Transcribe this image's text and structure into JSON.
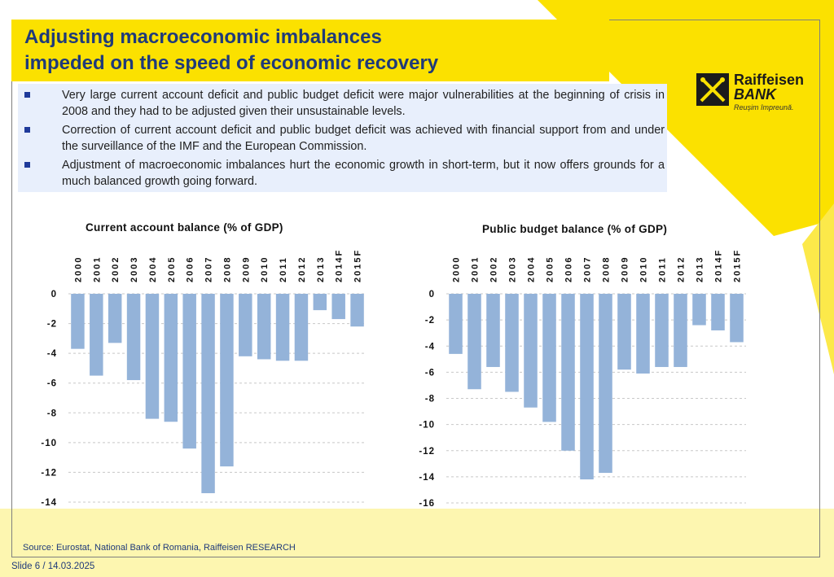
{
  "title": {
    "line1": "Adjusting macroeconomic imbalances",
    "line2": "impeded on the speed of economic recovery"
  },
  "bullets": [
    "Very large current account deficit and public budget deficit were major vulnerabilities at the beginning of crisis in 2008 and they had to be adjusted given their unsustainable levels.",
    "Correction of current account deficit and public budget deficit was achieved with financial support from and under the surveillance of the IMF and the European Commission.",
    "Adjustment of macroeconomic imbalances hurt the economic growth in short-term, but it now offers grounds for a much balanced growth going forward."
  ],
  "logo": {
    "name_line1": "Raiffeisen",
    "name_line2": "BANK",
    "slogan": "Reușim împreună."
  },
  "colors": {
    "title_bg": "#fbe100",
    "title_text": "#1f3a7a",
    "bullet_bg": "#e8effc",
    "bar": "#94b3d9"
  },
  "chart_data": [
    {
      "type": "bar",
      "title": "Current account balance (% of GDP)",
      "categories": [
        "2000",
        "2001",
        "2002",
        "2003",
        "2004",
        "2005",
        "2006",
        "2007",
        "2008",
        "2009",
        "2010",
        "2011",
        "2012",
        "2013",
        "2014F",
        "2015F"
      ],
      "values": [
        -3.7,
        -5.5,
        -3.3,
        -5.8,
        -8.4,
        -8.6,
        -10.4,
        -13.4,
        -11.6,
        -4.2,
        -4.4,
        -4.5,
        -4.5,
        -1.1,
        -1.7,
        -2.2
      ],
      "ylim": [
        -14,
        0
      ],
      "yticks": [
        "0",
        "-2",
        "-4",
        "-6",
        "-8",
        "-10",
        "-12",
        "-14"
      ],
      "grid": true
    },
    {
      "type": "bar",
      "title": "Public budget balance (% of GDP)",
      "categories": [
        "2000",
        "2001",
        "2002",
        "2003",
        "2004",
        "2005",
        "2006",
        "2007",
        "2008",
        "2009",
        "2010",
        "2011",
        "2012",
        "2013",
        "2014F",
        "2015F"
      ],
      "values": [
        -4.6,
        -7.3,
        -5.6,
        -7.5,
        -8.7,
        -9.8,
        -12.0,
        -14.2,
        -13.7,
        -5.8,
        -6.1,
        -5.6,
        -5.6,
        -2.4,
        -2.8,
        -3.7
      ],
      "ylim": [
        -16,
        0
      ],
      "yticks": [
        "0",
        "-2",
        "-4",
        "-6",
        "-8",
        "-10",
        "-12",
        "-14",
        "-16"
      ],
      "grid": true
    }
  ],
  "footer": {
    "source": "Source: Eurostat, National Bank of Romania, Raiffeisen RESEARCH",
    "slide": "Slide 6 / 14.03.2025"
  }
}
